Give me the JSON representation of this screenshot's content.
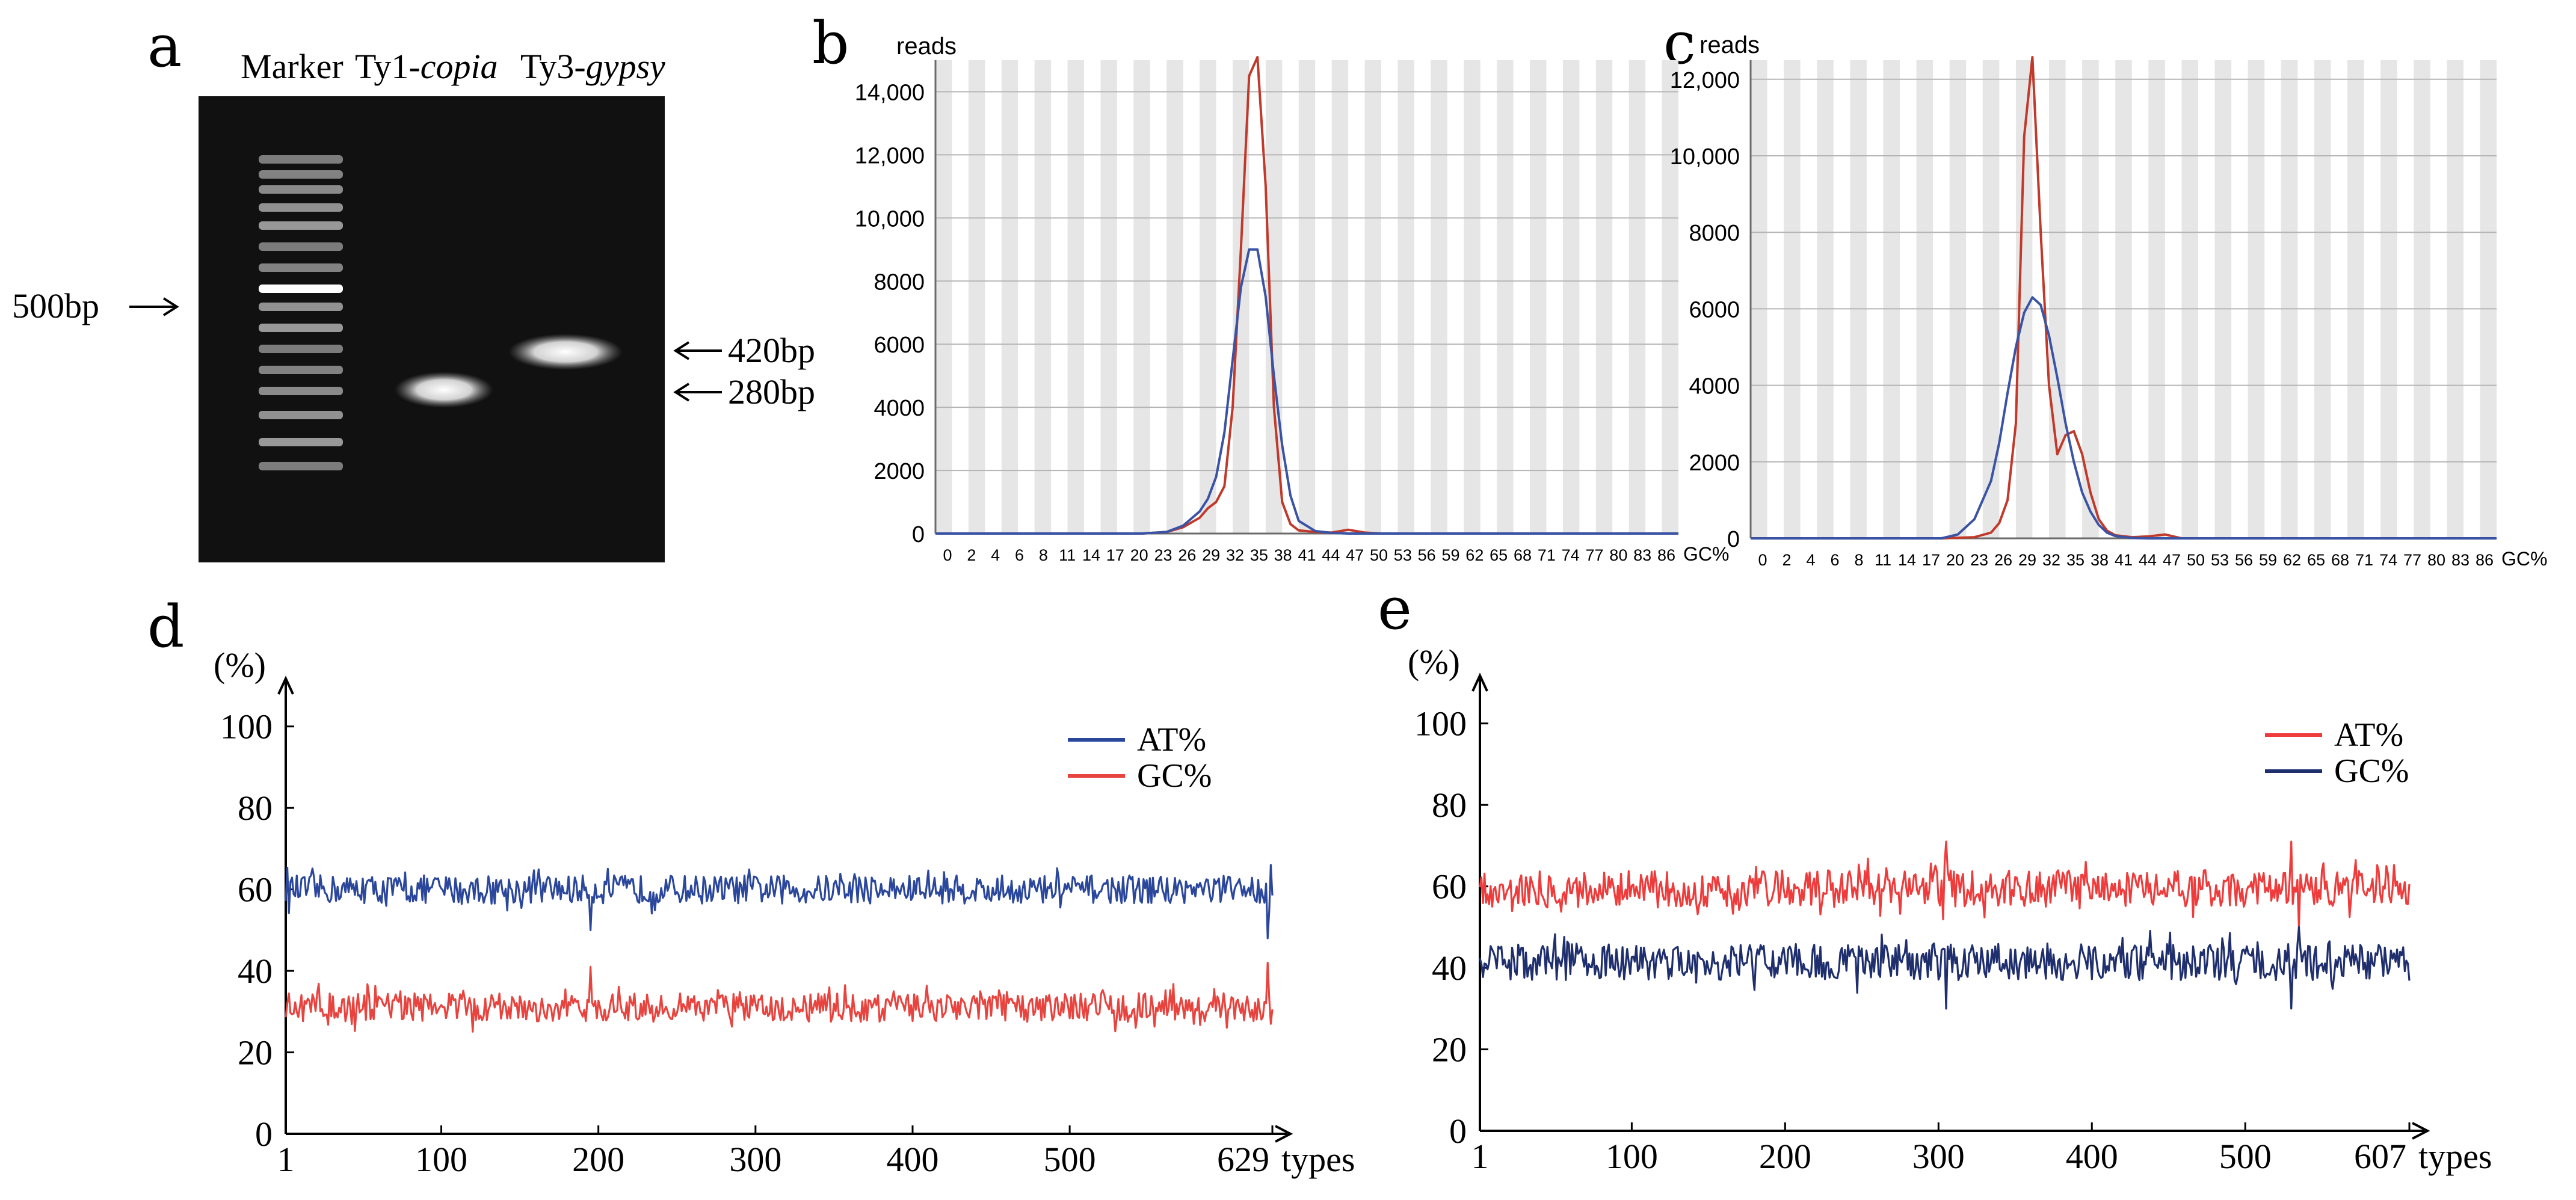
{
  "figure": {
    "panels": {
      "a": {
        "letter": "a",
        "lane_labels": {
          "marker": "Marker",
          "copia_prefix": "Ty1-",
          "copia_italic": "copia",
          "gypsy_prefix": "Ty3-",
          "gypsy_italic": "gypsy"
        },
        "size_labels": {
          "marker_band": "500bp",
          "gypsy_band": "420bp",
          "copia_band": "280bp"
        }
      },
      "b": {
        "letter": "b"
      },
      "c": {
        "letter": "c"
      },
      "d": {
        "letter": "d"
      },
      "e": {
        "letter": "e"
      }
    }
  },
  "chart_data": [
    {
      "id": "b",
      "type": "line",
      "ylabel": "reads",
      "xlabel": "GC%",
      "ylim": [
        0,
        15000
      ],
      "y_ticks": [
        0,
        2000,
        4000,
        6000,
        8000,
        10000,
        12000,
        14000
      ],
      "y_tick_labels": [
        "0",
        "2000",
        "4000",
        "6000",
        "8000",
        "10,000",
        "12,000",
        "14,000"
      ],
      "x_tick_labels": [
        "0",
        "2",
        "4",
        "6",
        "8",
        "11",
        "14",
        "17",
        "20",
        "23",
        "26",
        "29",
        "32",
        "35",
        "38",
        "41",
        "44",
        "47",
        "50",
        "53",
        "56",
        "59",
        "62",
        "65",
        "68",
        "71",
        "74",
        "77",
        "80",
        "83",
        "86"
      ],
      "grid": true,
      "series": [
        {
          "color": "#c0392b",
          "x": [
            0,
            25,
            28,
            30,
            32,
            33,
            34,
            35,
            36,
            37,
            38,
            39,
            40,
            41,
            42,
            43,
            44,
            46,
            48,
            50,
            52,
            54,
            90
          ],
          "y": [
            0,
            0,
            50,
            200,
            500,
            800,
            1000,
            1500,
            4000,
            9000,
            14500,
            15200,
            11000,
            4000,
            1000,
            300,
            100,
            50,
            30,
            120,
            30,
            0,
            0
          ]
        },
        {
          "color": "#3a53a4",
          "x": [
            0,
            25,
            28,
            30,
            32,
            33,
            34,
            35,
            36,
            37,
            38,
            39,
            40,
            41,
            42,
            43,
            44,
            46,
            48,
            50,
            90
          ],
          "y": [
            0,
            0,
            50,
            250,
            700,
            1100,
            1800,
            3200,
            5500,
            7800,
            9000,
            9000,
            7500,
            5000,
            2800,
            1200,
            400,
            80,
            20,
            0,
            0
          ]
        }
      ]
    },
    {
      "id": "c",
      "type": "line",
      "ylabel": "reads",
      "xlabel": "GC%",
      "ylim": [
        0,
        12500
      ],
      "y_ticks": [
        0,
        2000,
        4000,
        6000,
        8000,
        10000,
        12000
      ],
      "y_tick_labels": [
        "0",
        "2000",
        "4000",
        "6000",
        "8000",
        "10,000",
        "12,000"
      ],
      "x_tick_labels": [
        "0",
        "2",
        "4",
        "6",
        "8",
        "11",
        "14",
        "17",
        "20",
        "23",
        "26",
        "29",
        "32",
        "35",
        "38",
        "41",
        "44",
        "47",
        "50",
        "53",
        "56",
        "59",
        "62",
        "65",
        "68",
        "71",
        "74",
        "77",
        "80",
        "83",
        "86"
      ],
      "grid": true,
      "series": [
        {
          "color": "#c0392b",
          "x": [
            0,
            23,
            27,
            29,
            30,
            31,
            32,
            33,
            34,
            35,
            36,
            37,
            38,
            39,
            40,
            41,
            42,
            43,
            44,
            46,
            48,
            50,
            52,
            90
          ],
          "y": [
            0,
            0,
            30,
            150,
            400,
            1000,
            3000,
            10500,
            12600,
            8000,
            4000,
            2200,
            2700,
            2800,
            2200,
            1200,
            500,
            200,
            80,
            30,
            50,
            100,
            0,
            0
          ]
        },
        {
          "color": "#3a53a4",
          "x": [
            0,
            23,
            25,
            27,
            29,
            30,
            31,
            32,
            33,
            34,
            35,
            36,
            37,
            38,
            39,
            40,
            41,
            42,
            43,
            44,
            46,
            48,
            90
          ],
          "y": [
            0,
            0,
            100,
            500,
            1500,
            2500,
            3800,
            5000,
            5900,
            6300,
            6100,
            5300,
            4200,
            3000,
            2000,
            1200,
            700,
            350,
            150,
            60,
            10,
            0,
            0
          ]
        }
      ]
    },
    {
      "id": "d",
      "type": "line",
      "ylabel": "(%)",
      "xlabel": "types",
      "xlim": [
        1,
        629
      ],
      "ylim": [
        0,
        100
      ],
      "y_ticks": [
        0,
        20,
        40,
        60,
        80,
        100
      ],
      "x_ticks": [
        1,
        100,
        200,
        300,
        400,
        500,
        629
      ],
      "grid": false,
      "legend": "top-right",
      "series": [
        {
          "name": "AT%",
          "color": "#2b479c",
          "mean": 60,
          "amplitude": 3.5,
          "extremes": [
            [
              195,
              50
            ],
            [
              626,
              48
            ],
            [
              628,
              66
            ]
          ]
        },
        {
          "name": "GC%",
          "color": "#e8443f",
          "mean": 31,
          "amplitude": 3.5,
          "extremes": [
            [
              195,
              41
            ],
            [
              626,
              42
            ],
            [
              628,
              27
            ]
          ]
        }
      ]
    },
    {
      "id": "e",
      "type": "line",
      "ylabel": "(%)",
      "xlabel": "types",
      "xlim": [
        1,
        607
      ],
      "ylim": [
        0,
        100
      ],
      "y_ticks": [
        0,
        20,
        40,
        60,
        80,
        100
      ],
      "x_ticks": [
        1,
        100,
        200,
        300,
        400,
        500,
        607
      ],
      "grid": false,
      "legend": "top-right",
      "series": [
        {
          "name": "AT%",
          "color": "#ee3b3b",
          "mean": 59.5,
          "amplitude": 4.5,
          "extremes": [
            [
              305,
              71
            ],
            [
              530,
              71
            ],
            [
              535,
              50
            ]
          ]
        },
        {
          "name": "GC%",
          "color": "#1f2f6e",
          "mean": 41.5,
          "amplitude": 4.5,
          "extremes": [
            [
              305,
              30
            ],
            [
              530,
              30
            ],
            [
              535,
              50
            ]
          ]
        }
      ]
    }
  ]
}
